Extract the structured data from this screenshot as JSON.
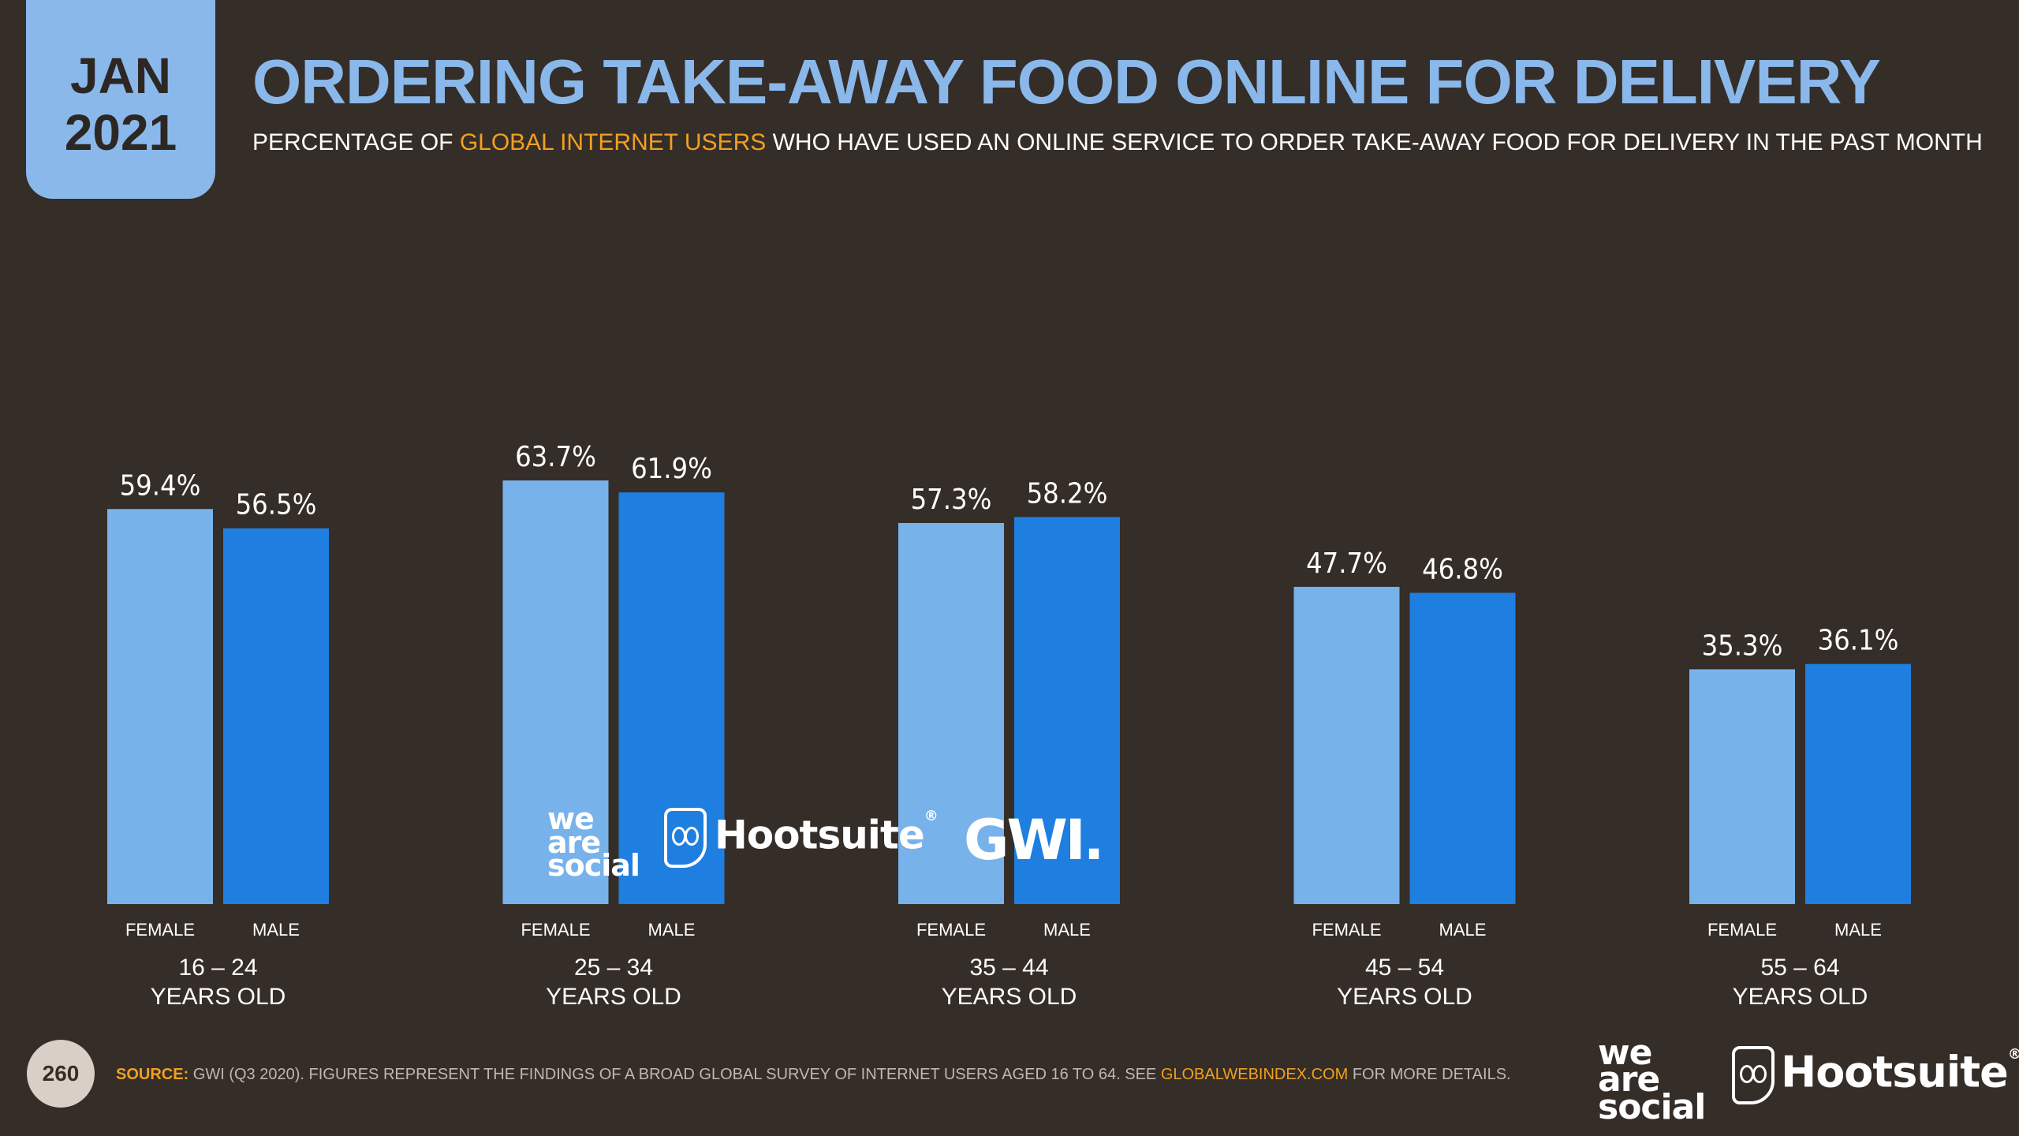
{
  "header": {
    "date_line1": "JAN",
    "date_line2": "2021",
    "title": "ORDERING TAKE-AWAY FOOD ONLINE FOR DELIVERY",
    "subtitle_pre": "PERCENTAGE OF ",
    "subtitle_highlight": "GLOBAL INTERNET USERS",
    "subtitle_post": " WHO HAVE USED AN ONLINE SERVICE TO ORDER TAKE-AWAY FOOD FOR DELIVERY IN THE PAST MONTH"
  },
  "colors": {
    "background": "#352d28",
    "female": "#78b2ea",
    "male": "#1f7fe0",
    "accent": "#f0a020",
    "title": "#8ab8ea"
  },
  "chart_data": {
    "type": "bar",
    "categories": [
      "16 – 24",
      "25 – 34",
      "35 – 44",
      "45 – 54",
      "55 – 64"
    ],
    "category_sublabel": "YEARS OLD",
    "series": [
      {
        "name": "FEMALE",
        "values": [
          59.4,
          63.7,
          57.3,
          47.7,
          35.3
        ],
        "labels": [
          "59.4%",
          "63.7%",
          "57.3%",
          "47.7%",
          "35.3%"
        ]
      },
      {
        "name": "MALE",
        "values": [
          56.5,
          61.9,
          58.2,
          46.8,
          36.1
        ],
        "labels": [
          "56.5%",
          "61.9%",
          "58.2%",
          "46.8%",
          "36.1%"
        ]
      }
    ],
    "ylim": [
      0,
      100
    ],
    "grid": false,
    "value_unit": "%"
  },
  "watermark": {
    "brand1": "we are social",
    "brand2": "Hootsuite",
    "brand3": "GWI."
  },
  "footer": {
    "page_number": "260",
    "source_label": "SOURCE:",
    "source_text": " GWI (Q3 2020). FIGURES REPRESENT THE FINDINGS OF A BROAD GLOBAL SURVEY OF INTERNET USERS AGED 16 TO 64. SEE ",
    "source_link": "GLOBALWEBINDEX.COM",
    "source_tail": " FOR MORE DETAILS.",
    "brand1": "we are social",
    "brand2": "Hootsuite"
  }
}
